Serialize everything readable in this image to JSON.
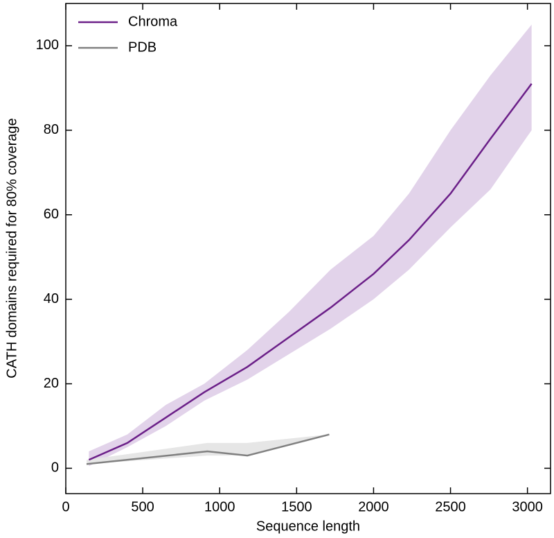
{
  "chart_data": {
    "type": "line",
    "xlabel": "Sequence length",
    "ylabel": "CATH domains required for 80% coverage",
    "xlim": [
      0,
      3150
    ],
    "ylim": [
      -6,
      110
    ],
    "xticks": [
      0,
      500,
      1000,
      1500,
      2000,
      2500,
      3000
    ],
    "yticks": [
      0,
      20,
      40,
      60,
      80,
      100
    ],
    "legend": "upper left",
    "series": [
      {
        "name": "Chroma",
        "color": "#6b1f88",
        "band_color": "#e2d3ea",
        "x": [
          150,
          400,
          650,
          900,
          1180,
          1450,
          1720,
          2000,
          2230,
          2500,
          2760,
          3027
        ],
        "values": [
          2,
          6,
          12,
          18,
          24,
          31,
          38,
          46,
          54,
          65,
          78,
          91
        ],
        "lower": [
          0.5,
          5,
          10,
          16,
          21,
          27,
          33,
          40,
          47,
          57,
          66,
          80
        ],
        "upper": [
          4,
          8,
          15,
          20,
          28,
          37,
          47,
          55,
          65,
          80,
          93,
          105
        ]
      },
      {
        "name": "PDB",
        "color": "#808080",
        "band_color": "#e6e6e6",
        "x": [
          135,
          920,
          1180,
          1712
        ],
        "values": [
          1,
          4,
          3,
          8
        ],
        "lower": [
          1,
          3,
          3,
          8
        ],
        "upper": [
          2,
          6,
          6,
          8
        ]
      }
    ]
  }
}
